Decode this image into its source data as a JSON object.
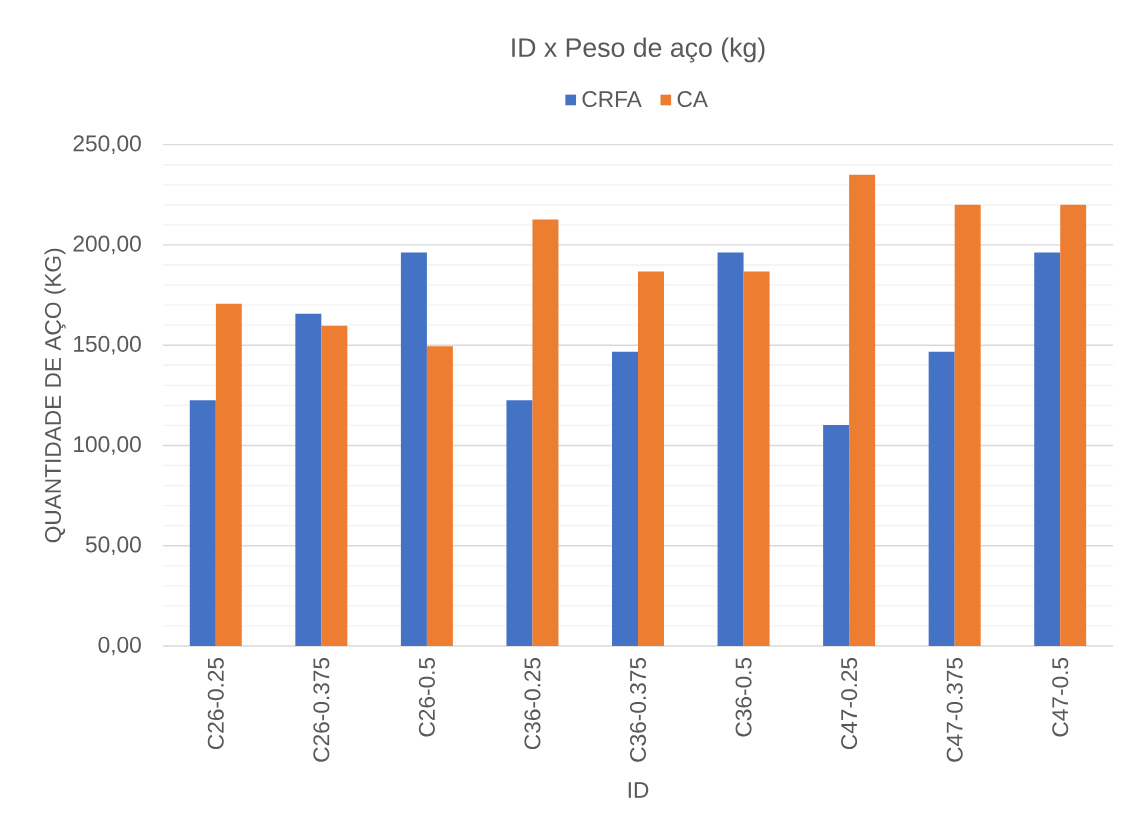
{
  "chart_data": {
    "type": "bar",
    "title": "ID x Peso de aço (kg)",
    "xlabel": "ID",
    "ylabel": "QUANTIDADE DE AÇO (KG)",
    "categories": [
      "C26-0.25",
      "C26-0.375",
      "C26-0.5",
      "C36-0.25",
      "C36-0.375",
      "C36-0.5",
      "C47-0.25",
      "C47-0.375",
      "C47-0.5"
    ],
    "series": [
      {
        "name": "CRFA",
        "color": "#4472c4",
        "values": [
          122.5,
          165.7,
          196.2,
          122.5,
          146.8,
          196.2,
          110.2,
          146.8,
          196.2
        ]
      },
      {
        "name": "CA",
        "color": "#ed7d31",
        "values": [
          170.7,
          159.7,
          149.5,
          212.7,
          186.7,
          186.7,
          235,
          220,
          220
        ]
      }
    ],
    "ylim": [
      0,
      250
    ],
    "yticks": [
      {
        "value": 0,
        "label": "0,00"
      },
      {
        "value": 50,
        "label": "50,00"
      },
      {
        "value": 100,
        "label": "100,00"
      },
      {
        "value": 150,
        "label": "150,00"
      },
      {
        "value": 200,
        "label": "200,00"
      },
      {
        "value": 250,
        "label": "250,00"
      }
    ],
    "grid": "y",
    "legend": "top"
  }
}
